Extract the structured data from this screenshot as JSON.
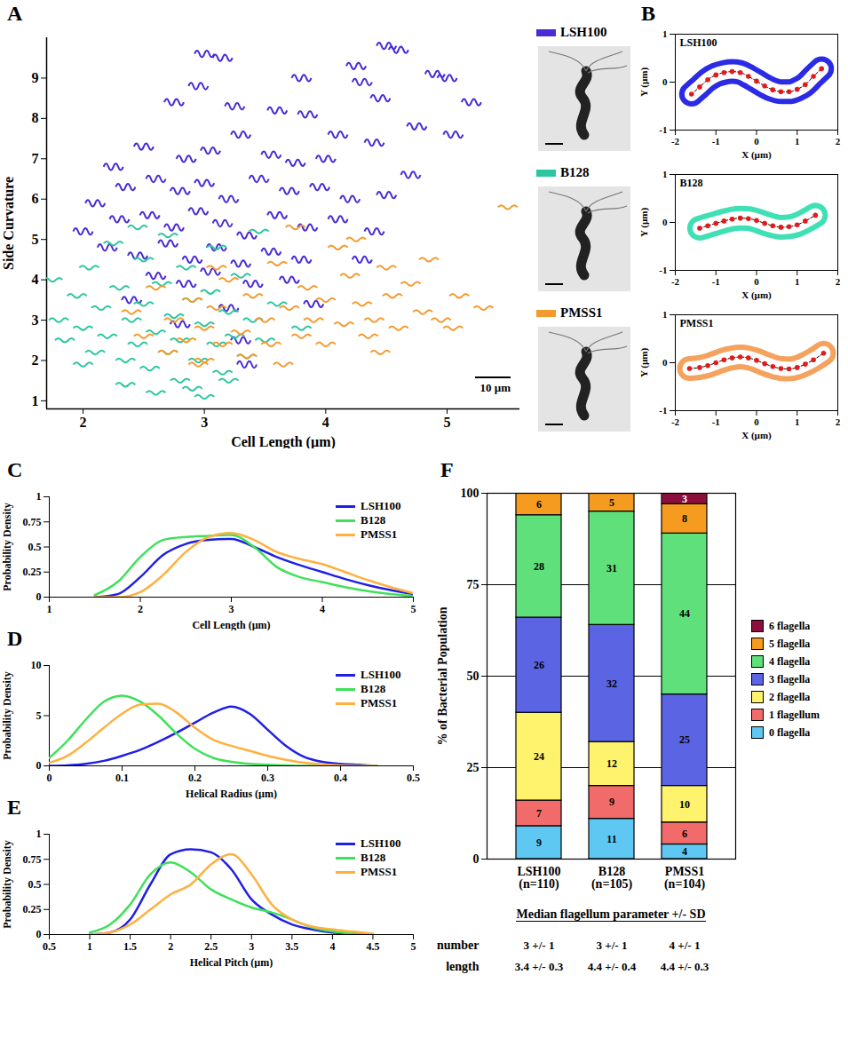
{
  "chart_data": [
    {
      "panel": "A",
      "type": "scatter",
      "x_label": "Cell Length (µm)",
      "y_label": "Side Curvature",
      "xlim": [
        1.7,
        5.6
      ],
      "ylim": [
        0.8,
        10
      ],
      "xticks": [
        2,
        3,
        4,
        5
      ],
      "yticks": [
        1,
        2,
        3,
        4,
        5,
        6,
        7,
        8,
        9
      ],
      "legend": "right",
      "annotations": [
        {
          "text": "10 µm"
        }
      ],
      "series": [
        {
          "name": "LSH100",
          "color": "#4a2bd4",
          "marker": "curly",
          "x": [
            3.0,
            3.15,
            4.5,
            4.6,
            4.9,
            5.0,
            4.25,
            4.3,
            4.45,
            3.8,
            2.75,
            2.95,
            3.25,
            3.6,
            3.85,
            4.1,
            4.4,
            4.75,
            5.2,
            5.05,
            2.25,
            2.5,
            2.85,
            3.05,
            3.3,
            3.55,
            3.75,
            4.0,
            4.7,
            2.1,
            2.35,
            2.6,
            2.8,
            3.0,
            3.2,
            3.45,
            3.7,
            3.95,
            4.2,
            4.5,
            2.0,
            2.3,
            2.55,
            2.75,
            2.95,
            3.15,
            3.35,
            3.6,
            3.85,
            4.1,
            4.4,
            2.2,
            2.45,
            2.7,
            2.9,
            3.1,
            3.3,
            3.55,
            3.8,
            2.6,
            2.85,
            3.05,
            3.4,
            3.7,
            2.4,
            3.2,
            3.9,
            2.8,
            3.3,
            4.3,
            3.35
          ],
          "values": [
            9.6,
            9.5,
            9.8,
            9.7,
            9.1,
            9.0,
            9.3,
            8.9,
            8.5,
            9.0,
            8.4,
            8.8,
            8.3,
            8.2,
            8.1,
            7.6,
            7.4,
            7.8,
            8.4,
            7.6,
            6.8,
            7.3,
            7.0,
            7.2,
            7.6,
            7.1,
            6.9,
            7.0,
            6.6,
            5.9,
            6.3,
            6.5,
            6.2,
            6.4,
            6.0,
            6.5,
            6.2,
            6.3,
            6.0,
            6.1,
            5.2,
            5.5,
            5.6,
            5.3,
            5.7,
            5.4,
            5.1,
            5.6,
            5.3,
            5.5,
            5.2,
            4.8,
            4.6,
            4.9,
            4.5,
            4.8,
            4.4,
            4.7,
            4.5,
            4.1,
            3.9,
            4.2,
            3.9,
            4.0,
            3.5,
            3.3,
            3.4,
            2.9,
            2.5,
            4.5,
            1.9
          ]
        },
        {
          "name": "B128",
          "color": "#2ac6a0",
          "marker": "wavy",
          "x": [
            1.75,
            1.8,
            1.85,
            1.95,
            2.0,
            2.05,
            2.1,
            2.15,
            2.2,
            2.25,
            2.3,
            2.35,
            2.4,
            2.45,
            2.5,
            2.5,
            2.55,
            2.6,
            2.65,
            2.7,
            2.7,
            2.75,
            2.8,
            2.8,
            2.85,
            2.9,
            2.95,
            3.0,
            3.0,
            3.05,
            3.1,
            3.1,
            3.15,
            3.2,
            3.25,
            3.3,
            3.35,
            3.4,
            3.45,
            3.5,
            2.35,
            2.6,
            2.0,
            2.9,
            3.2,
            2.45,
            3.6,
            3.8
          ],
          "values": [
            4.0,
            3.0,
            2.5,
            3.6,
            2.8,
            4.3,
            2.2,
            3.3,
            2.6,
            4.9,
            3.8,
            2.0,
            3.0,
            2.4,
            4.5,
            3.4,
            1.8,
            2.7,
            3.9,
            2.2,
            5.1,
            3.1,
            1.5,
            2.5,
            4.3,
            3.5,
            2.0,
            2.9,
            1.1,
            3.7,
            2.4,
            4.8,
            1.7,
            3.2,
            2.6,
            4.1,
            2.1,
            3.0,
            5.2,
            2.5,
            1.4,
            1.2,
            1.9,
            1.3,
            1.5,
            5.3,
            3.4,
            2.8
          ]
        },
        {
          "name": "PMSS1",
          "color": "#f39a2e",
          "marker": "wavy",
          "x": [
            2.4,
            2.5,
            2.6,
            2.7,
            2.75,
            2.85,
            2.9,
            3.0,
            3.0,
            3.1,
            3.15,
            3.2,
            3.3,
            3.35,
            3.4,
            3.5,
            3.55,
            3.6,
            3.65,
            3.7,
            3.8,
            3.85,
            3.9,
            4.0,
            4.0,
            4.1,
            4.15,
            4.2,
            4.3,
            4.35,
            4.4,
            4.5,
            4.55,
            4.6,
            4.7,
            4.8,
            4.85,
            4.95,
            5.05,
            5.1,
            5.3,
            5.5,
            4.25,
            3.1,
            2.95,
            4.45,
            3.75
          ],
          "values": [
            3.2,
            2.6,
            3.8,
            2.2,
            3.0,
            2.5,
            3.5,
            2.0,
            2.8,
            3.3,
            2.4,
            4.0,
            2.7,
            2.1,
            3.6,
            3.0,
            2.4,
            4.4,
            1.9,
            3.3,
            2.6,
            3.8,
            3.0,
            2.4,
            3.5,
            4.8,
            2.9,
            4.1,
            3.4,
            2.6,
            3.0,
            4.3,
            3.6,
            2.8,
            3.9,
            3.2,
            4.5,
            3.0,
            2.8,
            3.6,
            3.3,
            5.8,
            5.0,
            4.3,
            1.9,
            2.2,
            5.3
          ]
        }
      ]
    },
    {
      "panel": "B",
      "type": "line",
      "title": "LSH100",
      "x_label": "X (µm)",
      "y_label": "Y (µm)",
      "xlim": [
        -2,
        2
      ],
      "ylim": [
        -1,
        1
      ],
      "xticks": [
        -2,
        -1,
        0,
        1,
        2
      ],
      "yticks": [
        -1,
        0,
        1
      ],
      "x": [
        -1.6,
        -1.4,
        -1.2,
        -1.0,
        -0.8,
        -0.6,
        -0.4,
        -0.2,
        0,
        0.2,
        0.4,
        0.6,
        0.8,
        1.0,
        1.2,
        1.4,
        1.6
      ],
      "series": [
        {
          "color": "#2b2be6",
          "line_style": "outline",
          "values": [
            -0.25,
            -0.1,
            0.05,
            0.15,
            0.2,
            0.22,
            0.2,
            0.12,
            0.02,
            -0.08,
            -0.16,
            -0.2,
            -0.2,
            -0.15,
            -0.05,
            0.12,
            0.28
          ]
        },
        {
          "color": "#e31a1a",
          "marker": "circle",
          "line_style": "dashed",
          "values": [
            -0.25,
            -0.1,
            0.05,
            0.15,
            0.2,
            0.22,
            0.2,
            0.12,
            0.02,
            -0.08,
            -0.16,
            -0.2,
            -0.2,
            -0.15,
            -0.05,
            0.12,
            0.28
          ]
        }
      ]
    },
    {
      "type": "line",
      "title": "B128",
      "x_label": "X (µm)",
      "y_label": "Y (µm)",
      "xlim": [
        -2,
        2
      ],
      "ylim": [
        -1,
        1
      ],
      "xticks": [
        -2,
        -1,
        0,
        1,
        2
      ],
      "yticks": [
        -1,
        0,
        1
      ],
      "x": [
        -1.4,
        -1.2,
        -1.0,
        -0.8,
        -0.6,
        -0.4,
        -0.2,
        0,
        0.2,
        0.4,
        0.6,
        0.8,
        1.0,
        1.2,
        1.45
      ],
      "series": [
        {
          "color": "#3ee0b4",
          "line_style": "outline",
          "values": [
            -0.12,
            -0.07,
            -0.02,
            0.03,
            0.07,
            0.09,
            0.08,
            0.04,
            -0.02,
            -0.07,
            -0.1,
            -0.09,
            -0.05,
            0.03,
            0.15
          ]
        },
        {
          "color": "#e31a1a",
          "marker": "circle",
          "line_style": "dashed",
          "values": [
            -0.12,
            -0.07,
            -0.02,
            0.03,
            0.07,
            0.09,
            0.08,
            0.04,
            -0.02,
            -0.07,
            -0.1,
            -0.09,
            -0.05,
            0.03,
            0.15
          ]
        }
      ]
    },
    {
      "type": "line",
      "title": "PMSS1",
      "x_label": "X (µm)",
      "y_label": "Y (µm)",
      "xlim": [
        -2,
        2
      ],
      "ylim": [
        -1,
        1
      ],
      "xticks": [
        -2,
        -1,
        0,
        1,
        2
      ],
      "yticks": [
        -1,
        0,
        1
      ],
      "x": [
        -1.65,
        -1.4,
        -1.2,
        -1.0,
        -0.8,
        -0.6,
        -0.4,
        -0.2,
        0,
        0.2,
        0.4,
        0.6,
        0.8,
        1.0,
        1.2,
        1.4,
        1.65
      ],
      "series": [
        {
          "color": "#f5a25e",
          "line_style": "outline",
          "values": [
            -0.12,
            -0.1,
            -0.06,
            0,
            0.06,
            0.1,
            0.12,
            0.1,
            0.05,
            -0.02,
            -0.08,
            -0.12,
            -0.13,
            -0.1,
            -0.03,
            0.06,
            0.2
          ]
        },
        {
          "color": "#e31a1a",
          "marker": "circle",
          "line_style": "dashed",
          "values": [
            -0.12,
            -0.1,
            -0.06,
            0,
            0.06,
            0.1,
            0.12,
            0.1,
            0.05,
            -0.02,
            -0.08,
            -0.12,
            -0.13,
            -0.1,
            -0.03,
            0.06,
            0.2
          ]
        }
      ]
    },
    {
      "panel": "C",
      "type": "line",
      "x_label": "Cell Length (µm)",
      "y_label": "Probability Density",
      "xlim": [
        1,
        5
      ],
      "ylim": [
        0,
        1
      ],
      "xticks": [
        1,
        2,
        3,
        4,
        5
      ],
      "yticks": [
        0,
        0.25,
        0.5,
        0.75,
        1
      ],
      "legend": "upper right",
      "x": [
        1.5,
        1.75,
        2.0,
        2.25,
        2.5,
        2.75,
        3.0,
        3.25,
        3.5,
        3.75,
        4.0,
        4.25,
        4.5,
        4.75,
        5
      ],
      "series": [
        {
          "name": "LSH100",
          "color": "#1f1fe5",
          "values": [
            0,
            0.03,
            0.2,
            0.42,
            0.53,
            0.57,
            0.58,
            0.5,
            0.4,
            0.32,
            0.25,
            0.18,
            0.12,
            0.07,
            0.03
          ]
        },
        {
          "name": "B128",
          "color": "#3fe05a",
          "values": [
            0.02,
            0.15,
            0.4,
            0.57,
            0.6,
            0.61,
            0.62,
            0.5,
            0.3,
            0.2,
            0.15,
            0.1,
            0.06,
            0.03,
            0.01
          ]
        },
        {
          "name": "PMSS1",
          "color": "#ffb040",
          "values": [
            0,
            0,
            0.05,
            0.22,
            0.45,
            0.6,
            0.64,
            0.57,
            0.45,
            0.38,
            0.33,
            0.25,
            0.17,
            0.1,
            0.04
          ]
        }
      ]
    },
    {
      "panel": "D",
      "type": "line",
      "x_label": "Helical Radius (µm)",
      "y_label": "Probability Density",
      "xlim": [
        0,
        0.5
      ],
      "ylim": [
        0,
        10
      ],
      "xticks": [
        0,
        0.1,
        0.2,
        0.3,
        0.4,
        0.5
      ],
      "yticks": [
        0,
        5,
        10
      ],
      "legend": "upper right",
      "x": [
        0,
        0.025,
        0.05,
        0.075,
        0.1,
        0.125,
        0.15,
        0.175,
        0.2,
        0.225,
        0.25,
        0.275,
        0.3,
        0.325,
        0.35,
        0.375,
        0.4,
        0.425,
        0.45
      ],
      "series": [
        {
          "name": "LSH100",
          "color": "#1f1fe5",
          "values": [
            0,
            0.05,
            0.2,
            0.5,
            1.0,
            1.6,
            2.4,
            3.3,
            4.3,
            5.3,
            5.9,
            5.2,
            3.6,
            2.0,
            0.9,
            0.4,
            0.2,
            0.1,
            0
          ]
        },
        {
          "name": "B128",
          "color": "#3fe05a",
          "values": [
            0.8,
            2.5,
            4.6,
            6.4,
            7.0,
            6.4,
            5.0,
            3.2,
            1.7,
            0.8,
            0.4,
            0.2,
            0.1,
            0.05,
            0,
            0,
            0,
            0,
            0
          ]
        },
        {
          "name": "PMSS1",
          "color": "#ffb040",
          "values": [
            0.3,
            1.0,
            2.3,
            3.8,
            5.2,
            6.1,
            6.2,
            5.3,
            3.8,
            2.6,
            2.0,
            1.5,
            1.0,
            0.6,
            0.3,
            0.15,
            0.05,
            0,
            0
          ]
        }
      ]
    },
    {
      "panel": "E",
      "type": "line",
      "x_label": "Helical Pitch (µm)",
      "y_label": "Probability Density",
      "xlim": [
        0.5,
        5
      ],
      "ylim": [
        0,
        1
      ],
      "xticks": [
        0.5,
        1,
        1.5,
        2,
        2.5,
        3,
        3.5,
        4,
        4.5,
        5
      ],
      "yticks": [
        0,
        0.25,
        0.5,
        0.75,
        1
      ],
      "legend": "upper right",
      "x": [
        1,
        1.25,
        1.5,
        1.75,
        2.0,
        2.25,
        2.5,
        2.75,
        3.0,
        3.25,
        3.5,
        3.75,
        4,
        4.25,
        4.5
      ],
      "series": [
        {
          "name": "LSH100",
          "color": "#1f1fe5",
          "values": [
            0,
            0.02,
            0.15,
            0.5,
            0.8,
            0.85,
            0.82,
            0.65,
            0.35,
            0.2,
            0.1,
            0.05,
            0.02,
            0.01,
            0
          ]
        },
        {
          "name": "B128",
          "color": "#3fe05a",
          "values": [
            0.02,
            0.1,
            0.3,
            0.6,
            0.72,
            0.62,
            0.45,
            0.35,
            0.27,
            0.22,
            0.15,
            0.07,
            0.03,
            0.01,
            0
          ]
        },
        {
          "name": "PMSS1",
          "color": "#ffb040",
          "values": [
            0,
            0.02,
            0.1,
            0.25,
            0.4,
            0.5,
            0.7,
            0.8,
            0.6,
            0.3,
            0.15,
            0.08,
            0.05,
            0.03,
            0.01
          ]
        }
      ]
    },
    {
      "panel": "F",
      "type": "bar",
      "stacked": true,
      "data_labels": true,
      "grid": true,
      "legend": "right",
      "y_label": "% of Bacterial Population",
      "ylim": [
        0,
        100
      ],
      "yticks": [
        0,
        25,
        50,
        75,
        100
      ],
      "categories": [
        "LSH100\n(n=110)",
        "B128\n(n=105)",
        "PMSS1\n(n=104)"
      ],
      "series": [
        {
          "name": "0 flagella",
          "color": "#5ec8f2",
          "values": [
            9,
            11,
            4
          ]
        },
        {
          "name": "1 flagellum",
          "color": "#f26b6b",
          "values": [
            7,
            9,
            6
          ]
        },
        {
          "name": "2 flagella",
          "color": "#fff36e",
          "values": [
            24,
            12,
            10
          ]
        },
        {
          "name": "3 flagella",
          "color": "#5b64e3",
          "values": [
            26,
            32,
            25
          ]
        },
        {
          "name": "4 flagella",
          "color": "#5fe07a",
          "values": [
            28,
            31,
            44
          ]
        },
        {
          "name": "5 flagella",
          "color": "#f59b1f",
          "values": [
            6,
            5,
            8
          ]
        },
        {
          "name": "6 flagella",
          "color": "#8c0e3c",
          "values": [
            null,
            null,
            3
          ]
        }
      ],
      "table": {
        "title": "Median flagellum parameter +/- SD",
        "rows": [
          {
            "label": "number",
            "values": [
              "3 +/- 1",
              "3 +/- 1",
              "4 +/- 1"
            ]
          },
          {
            "label": "length",
            "values": [
              "3.4 +/- 0.3",
              "4.4 +/- 0.4",
              "4.4 +/- 0.3"
            ]
          }
        ]
      }
    }
  ]
}
